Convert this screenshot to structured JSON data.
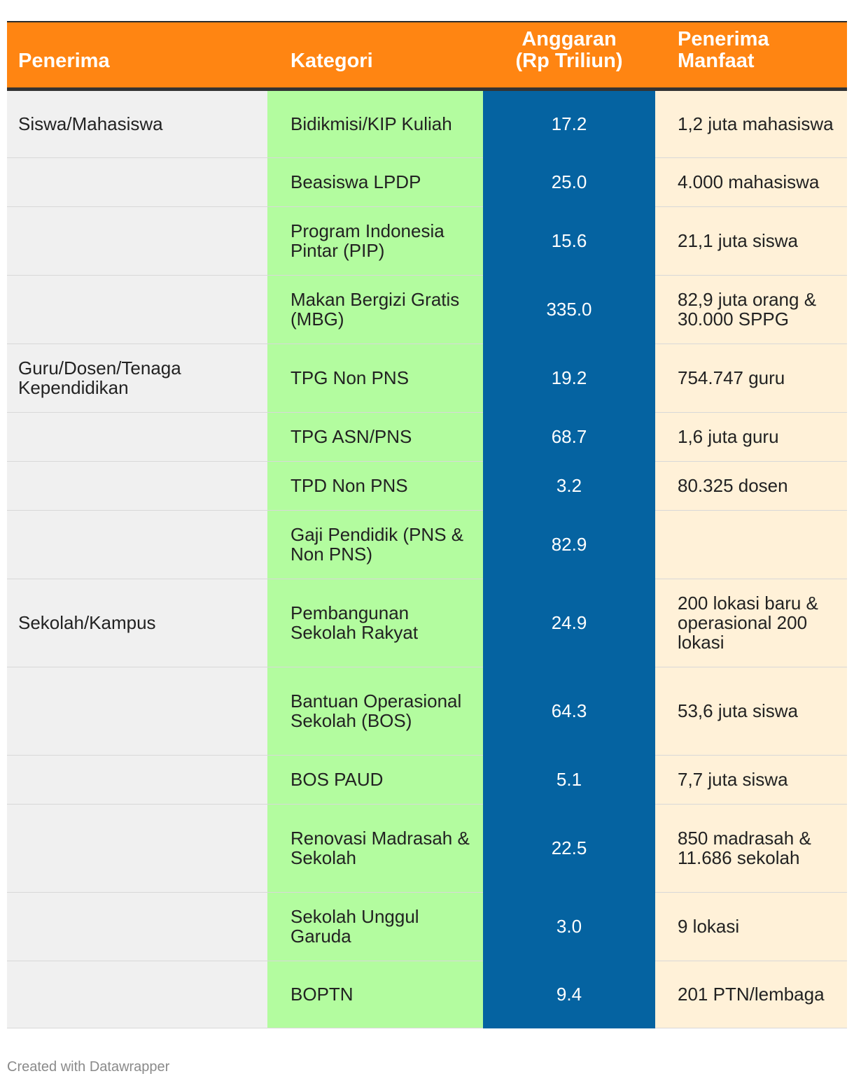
{
  "chart_data": {
    "type": "table",
    "columns": [
      "Penerima",
      "Kategori",
      "Anggaran (Rp Triliun)",
      "Penerima Manfaat"
    ],
    "rows": [
      {
        "penerima": "Siswa/Mahasiswa",
        "kategori": "Bidikmisi/KIP Kuliah",
        "anggaran": "17.2",
        "manfaat": "1,2 juta mahasiswa"
      },
      {
        "penerima": "",
        "kategori": "Beasiswa LPDP",
        "anggaran": "25.0",
        "manfaat": "4.000 mahasiswa"
      },
      {
        "penerima": "",
        "kategori": "Program Indonesia Pintar (PIP)",
        "anggaran": "15.6",
        "manfaat": "21,1 juta siswa"
      },
      {
        "penerima": "",
        "kategori": "Makan Bergizi Gratis (MBG)",
        "anggaran": "335.0",
        "manfaat": "82,9 juta orang & 30.000 SPPG"
      },
      {
        "penerima": "Guru/Dosen/Tenaga Kependidikan",
        "kategori": "TPG Non PNS",
        "anggaran": "19.2",
        "manfaat": "754.747 guru"
      },
      {
        "penerima": "",
        "kategori": "TPG ASN/PNS",
        "anggaran": "68.7",
        "manfaat": "1,6 juta guru"
      },
      {
        "penerima": "",
        "kategori": "TPD Non PNS",
        "anggaran": "3.2",
        "manfaat": "80.325 dosen"
      },
      {
        "penerima": "",
        "kategori": "Gaji Pendidik (PNS & Non PNS)",
        "anggaran": "82.9",
        "manfaat": ""
      },
      {
        "penerima": "Sekolah/Kampus",
        "kategori": "Pembangunan Sekolah Rakyat",
        "anggaran": "24.9",
        "manfaat": "200 lokasi baru & operasional 200 lokasi"
      },
      {
        "penerima": "",
        "kategori": "Bantuan Operasional Sekolah (BOS)",
        "anggaran": "64.3",
        "manfaat": "53,6 juta siswa"
      },
      {
        "penerima": "",
        "kategori": "BOS PAUD",
        "anggaran": "5.1",
        "manfaat": "7,7 juta siswa"
      },
      {
        "penerima": "",
        "kategori": "Renovasi Madrasah & Sekolah",
        "anggaran": "22.5",
        "manfaat": "850 madrasah & 11.686 sekolah"
      },
      {
        "penerima": "",
        "kategori": "Sekolah Unggul Garuda",
        "anggaran": "3.0",
        "manfaat": "9 lokasi"
      },
      {
        "penerima": "",
        "kategori": "BOPTN",
        "anggaran": "9.4",
        "manfaat": "201 PTN/lembaga"
      }
    ]
  },
  "colors": {
    "header": "#ff8512",
    "col_penerima": "#f0f0f0",
    "col_kategori": "#b3fc9f",
    "col_anggaran": "#0563a1",
    "col_manfaat": "#fff1d8"
  },
  "footer": {
    "credit": "Created with Datawrapper"
  }
}
